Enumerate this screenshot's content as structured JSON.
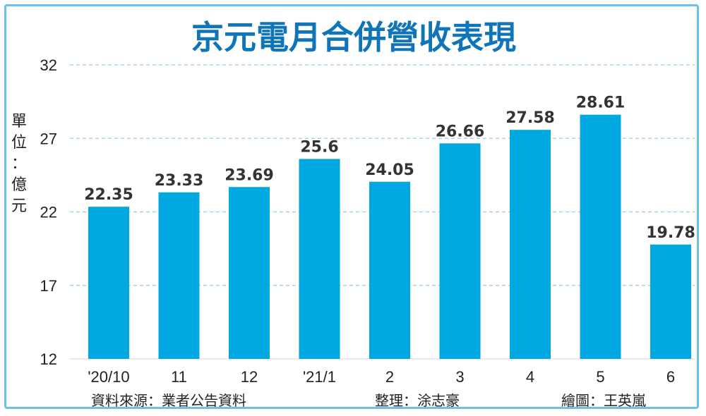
{
  "chart_data": {
    "type": "bar",
    "title": "京元電月合併營收表現",
    "ylabel": "單位：億元",
    "categories": [
      "'20/10",
      "11",
      "12",
      "'21/1",
      "2",
      "3",
      "4",
      "5",
      "6"
    ],
    "values": [
      22.35,
      23.33,
      23.69,
      25.6,
      24.05,
      26.66,
      27.58,
      28.61,
      19.78
    ],
    "value_labels": [
      "22.35",
      "23.33",
      "23.69",
      "25.6",
      "24.05",
      "26.66",
      "27.58",
      "28.61",
      "19.78"
    ],
    "ylim": [
      12,
      32
    ],
    "yticks": [
      12,
      17,
      22,
      27,
      32
    ],
    "grid": true,
    "colors": {
      "bar": "#00a8e2",
      "title": "#0f74b8",
      "grid": "#9bcbe6",
      "frame": "#6cc0ea"
    }
  },
  "credits": {
    "source": "資料來源：業者公告資料",
    "editor": "整理：涂志豪",
    "illustrator": "繪圖：王英嵐"
  }
}
